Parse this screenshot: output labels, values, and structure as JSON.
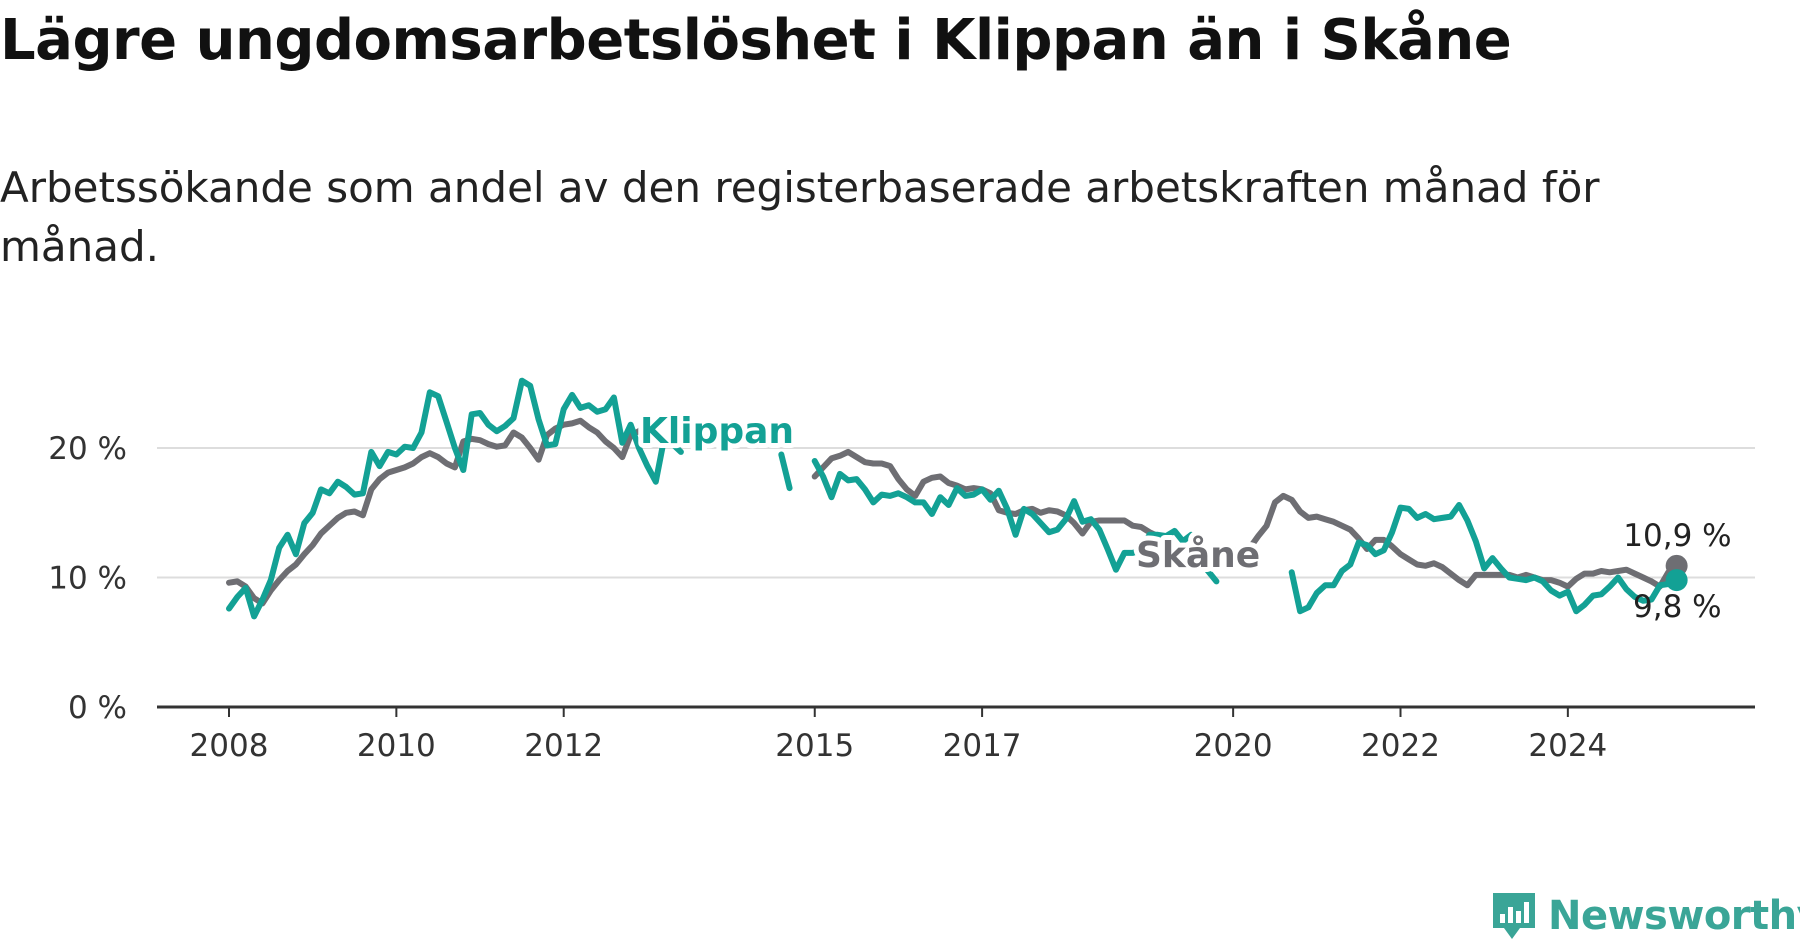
{
  "title": "Lägre ungdomsarbetslöshet i Klippan än i Skåne",
  "subtitle": "Arbetssökande som andel av den registerbaserade arbetskraften månad för månad.",
  "brand": "Newsworthy",
  "colors": {
    "klippan": "#13a195",
    "skane": "#6e6e73",
    "axis": "#333333",
    "grid": "#dddddd"
  },
  "chart_data": {
    "type": "line",
    "title": "Lägre ungdomsarbetslöshet i Klippan än i Skåne",
    "xlabel": "",
    "ylabel": "",
    "ylim": [
      0,
      20
    ],
    "xlim": [
      2008.0,
      2025.4
    ],
    "grid": true,
    "y_ticks": [
      0,
      10,
      20
    ],
    "y_tick_labels": [
      "0 %",
      "10 %",
      "20 %"
    ],
    "x_ticks": [
      2008,
      2010,
      2012,
      2015,
      2017,
      2020,
      2022,
      2024
    ],
    "x_tick_labels": [
      "2008",
      "2010",
      "2012",
      "2015",
      "2017",
      "2020",
      "2022",
      "2024"
    ],
    "series": [
      {
        "name": "Skåne",
        "label": "Skåne",
        "end_label": "10,9 %",
        "color": "#6e6e73",
        "points": [
          [
            2008.0,
            9.6
          ],
          [
            2008.1,
            9.7
          ],
          [
            2008.2,
            9.3
          ],
          [
            2008.3,
            8.4
          ],
          [
            2008.4,
            8.0
          ],
          [
            2008.5,
            9.0
          ],
          [
            2008.6,
            9.8
          ],
          [
            2008.7,
            10.5
          ],
          [
            2008.8,
            11.0
          ],
          [
            2008.9,
            11.8
          ],
          [
            2009.0,
            12.5
          ],
          [
            2009.1,
            13.4
          ],
          [
            2009.2,
            14.0
          ],
          [
            2009.3,
            14.6
          ],
          [
            2009.4,
            15.0
          ],
          [
            2009.5,
            15.1
          ],
          [
            2009.6,
            14.8
          ],
          [
            2009.7,
            16.8
          ],
          [
            2009.8,
            17.6
          ],
          [
            2009.9,
            18.1
          ],
          [
            2010.0,
            18.3
          ],
          [
            2010.1,
            18.5
          ],
          [
            2010.2,
            18.8
          ],
          [
            2010.3,
            19.3
          ],
          [
            2010.4,
            19.6
          ],
          [
            2010.5,
            19.3
          ],
          [
            2010.6,
            18.8
          ],
          [
            2010.7,
            18.5
          ],
          [
            2010.8,
            20.5
          ],
          [
            2010.9,
            20.7
          ],
          [
            2011.0,
            20.6
          ],
          [
            2011.1,
            20.3
          ],
          [
            2011.2,
            20.1
          ],
          [
            2011.3,
            20.2
          ],
          [
            2011.4,
            21.2
          ],
          [
            2011.5,
            20.8
          ],
          [
            2011.6,
            20.0
          ],
          [
            2011.7,
            19.1
          ],
          [
            2011.8,
            21.0
          ],
          [
            2011.9,
            21.5
          ],
          [
            2012.0,
            21.8
          ],
          [
            2012.1,
            21.9
          ],
          [
            2012.2,
            22.1
          ],
          [
            2012.3,
            21.6
          ],
          [
            2012.4,
            21.2
          ],
          [
            2012.5,
            20.5
          ],
          [
            2012.6,
            20.0
          ],
          [
            2012.7,
            19.3
          ],
          [
            2012.8,
            21.0
          ],
          [
            2012.9,
            21.3
          ],
          [
            2013.0,
            21.9
          ],
          [
            2015.0,
            17.8
          ],
          [
            2015.1,
            18.5
          ],
          [
            2015.2,
            19.2
          ],
          [
            2015.3,
            19.4
          ],
          [
            2015.4,
            19.7
          ],
          [
            2015.5,
            19.3
          ],
          [
            2015.6,
            18.9
          ],
          [
            2015.7,
            18.8
          ],
          [
            2015.8,
            18.8
          ],
          [
            2015.9,
            18.6
          ],
          [
            2016.0,
            17.6
          ],
          [
            2016.1,
            16.8
          ],
          [
            2016.2,
            16.3
          ],
          [
            2016.3,
            17.4
          ],
          [
            2016.4,
            17.7
          ],
          [
            2016.5,
            17.8
          ],
          [
            2016.6,
            17.3
          ],
          [
            2016.7,
            17.1
          ],
          [
            2016.8,
            16.8
          ],
          [
            2016.9,
            16.9
          ],
          [
            2017.0,
            16.8
          ],
          [
            2017.1,
            16.5
          ],
          [
            2017.2,
            15.2
          ],
          [
            2017.3,
            15.0
          ],
          [
            2017.4,
            14.9
          ],
          [
            2017.5,
            15.2
          ],
          [
            2017.6,
            15.3
          ],
          [
            2017.7,
            15.0
          ],
          [
            2017.8,
            15.2
          ],
          [
            2017.9,
            15.1
          ],
          [
            2018.0,
            14.8
          ],
          [
            2018.1,
            14.2
          ],
          [
            2018.2,
            13.4
          ],
          [
            2018.3,
            14.3
          ],
          [
            2018.4,
            14.4
          ],
          [
            2018.5,
            14.4
          ],
          [
            2018.6,
            14.4
          ],
          [
            2018.7,
            14.4
          ],
          [
            2018.8,
            14.0
          ],
          [
            2018.9,
            13.9
          ],
          [
            2019.0,
            13.5
          ],
          [
            2019.1,
            13.2
          ],
          [
            2019.2,
            12.5
          ],
          [
            2019.3,
            11.9
          ],
          [
            2020.0,
            12.2
          ],
          [
            2020.1,
            11.8
          ],
          [
            2020.2,
            12.3
          ],
          [
            2020.3,
            13.2
          ],
          [
            2020.4,
            14.0
          ],
          [
            2020.5,
            15.8
          ],
          [
            2020.6,
            16.3
          ],
          [
            2020.7,
            16.0
          ],
          [
            2020.8,
            15.1
          ],
          [
            2020.9,
            14.6
          ],
          [
            2021.0,
            14.7
          ],
          [
            2021.1,
            14.5
          ],
          [
            2021.2,
            14.3
          ],
          [
            2021.3,
            14.0
          ],
          [
            2021.4,
            13.7
          ],
          [
            2021.5,
            13.0
          ],
          [
            2021.6,
            12.2
          ],
          [
            2021.7,
            12.9
          ],
          [
            2021.8,
            12.9
          ],
          [
            2021.9,
            12.4
          ],
          [
            2022.0,
            11.8
          ],
          [
            2022.1,
            11.4
          ],
          [
            2022.2,
            11.0
          ],
          [
            2022.3,
            10.9
          ],
          [
            2022.4,
            11.1
          ],
          [
            2022.5,
            10.8
          ],
          [
            2022.6,
            10.3
          ],
          [
            2022.7,
            9.8
          ],
          [
            2022.8,
            9.4
          ],
          [
            2022.9,
            10.2
          ],
          [
            2023.0,
            10.2
          ],
          [
            2023.1,
            10.2
          ],
          [
            2023.2,
            10.2
          ],
          [
            2023.3,
            10.2
          ],
          [
            2023.4,
            10.0
          ],
          [
            2023.5,
            10.2
          ],
          [
            2023.6,
            10.0
          ],
          [
            2023.7,
            9.8
          ],
          [
            2023.8,
            9.8
          ],
          [
            2023.9,
            9.6
          ],
          [
            2024.0,
            9.3
          ],
          [
            2024.1,
            9.9
          ],
          [
            2024.2,
            10.3
          ],
          [
            2024.3,
            10.3
          ],
          [
            2024.4,
            10.5
          ],
          [
            2024.5,
            10.4
          ],
          [
            2024.6,
            10.5
          ],
          [
            2024.7,
            10.6
          ],
          [
            2024.8,
            10.3
          ],
          [
            2024.9,
            10.0
          ],
          [
            2025.0,
            9.7
          ],
          [
            2025.1,
            9.3
          ],
          [
            2025.2,
            10.4
          ],
          [
            2025.3,
            10.9
          ]
        ]
      },
      {
        "name": "Klippan",
        "label": "Klippan",
        "end_label": "9,8 %",
        "color": "#13a195",
        "points": [
          [
            2008.0,
            7.6
          ],
          [
            2008.1,
            8.5
          ],
          [
            2008.2,
            9.2
          ],
          [
            2008.3,
            7.0
          ],
          [
            2008.4,
            8.3
          ],
          [
            2008.5,
            9.8
          ],
          [
            2008.6,
            12.3
          ],
          [
            2008.7,
            13.3
          ],
          [
            2008.8,
            11.8
          ],
          [
            2008.9,
            14.2
          ],
          [
            2009.0,
            15.0
          ],
          [
            2009.1,
            16.8
          ],
          [
            2009.2,
            16.5
          ],
          [
            2009.3,
            17.4
          ],
          [
            2009.4,
            17.0
          ],
          [
            2009.5,
            16.4
          ],
          [
            2009.6,
            16.5
          ],
          [
            2009.7,
            19.7
          ],
          [
            2009.8,
            18.6
          ],
          [
            2009.9,
            19.7
          ],
          [
            2010.0,
            19.5
          ],
          [
            2010.1,
            20.1
          ],
          [
            2010.2,
            20.0
          ],
          [
            2010.3,
            21.2
          ],
          [
            2010.4,
            24.3
          ],
          [
            2010.5,
            24.0
          ],
          [
            2010.6,
            22.0
          ],
          [
            2010.7,
            20.0
          ],
          [
            2010.8,
            18.3
          ],
          [
            2010.9,
            22.6
          ],
          [
            2011.0,
            22.7
          ],
          [
            2011.1,
            21.8
          ],
          [
            2011.2,
            21.3
          ],
          [
            2011.3,
            21.7
          ],
          [
            2011.4,
            22.3
          ],
          [
            2011.5,
            25.2
          ],
          [
            2011.6,
            24.8
          ],
          [
            2011.7,
            22.2
          ],
          [
            2011.8,
            20.2
          ],
          [
            2011.9,
            20.3
          ],
          [
            2012.0,
            23.0
          ],
          [
            2012.1,
            24.1
          ],
          [
            2012.2,
            23.1
          ],
          [
            2012.3,
            23.3
          ],
          [
            2012.4,
            22.8
          ],
          [
            2012.5,
            23.0
          ],
          [
            2012.6,
            23.9
          ],
          [
            2012.7,
            20.4
          ],
          [
            2012.8,
            21.8
          ],
          [
            2012.9,
            20.0
          ],
          [
            2013.0,
            18.6
          ],
          [
            2013.1,
            17.4
          ],
          [
            2013.2,
            20.7
          ],
          [
            2013.3,
            20.3
          ],
          [
            2013.4,
            19.7
          ],
          [
            2014.6,
            19.5
          ],
          [
            2014.7,
            16.9
          ],
          [
            2015.0,
            19.0
          ],
          [
            2015.1,
            17.8
          ],
          [
            2015.2,
            16.2
          ],
          [
            2015.3,
            18.0
          ],
          [
            2015.4,
            17.5
          ],
          [
            2015.5,
            17.6
          ],
          [
            2015.6,
            16.8
          ],
          [
            2015.7,
            15.8
          ],
          [
            2015.8,
            16.4
          ],
          [
            2015.9,
            16.3
          ],
          [
            2016.0,
            16.5
          ],
          [
            2016.1,
            16.2
          ],
          [
            2016.2,
            15.8
          ],
          [
            2016.3,
            15.8
          ],
          [
            2016.4,
            14.9
          ],
          [
            2016.5,
            16.2
          ],
          [
            2016.6,
            15.6
          ],
          [
            2016.7,
            16.9
          ],
          [
            2016.8,
            16.3
          ],
          [
            2016.9,
            16.4
          ],
          [
            2017.0,
            16.8
          ],
          [
            2017.1,
            16.0
          ],
          [
            2017.2,
            16.7
          ],
          [
            2017.3,
            15.3
          ],
          [
            2017.4,
            13.3
          ],
          [
            2017.5,
            15.3
          ],
          [
            2017.6,
            14.9
          ],
          [
            2017.7,
            14.2
          ],
          [
            2017.8,
            13.5
          ],
          [
            2017.9,
            13.7
          ],
          [
            2018.0,
            14.5
          ],
          [
            2018.1,
            15.9
          ],
          [
            2018.2,
            14.3
          ],
          [
            2018.3,
            14.5
          ],
          [
            2018.4,
            13.7
          ],
          [
            2018.5,
            12.2
          ],
          [
            2018.6,
            10.6
          ],
          [
            2018.7,
            11.9
          ],
          [
            2018.8,
            11.9
          ],
          [
            2018.9,
            12.1
          ],
          [
            2019.0,
            13.3
          ],
          [
            2019.1,
            13.3
          ],
          [
            2019.2,
            13.2
          ],
          [
            2019.3,
            13.6
          ],
          [
            2019.4,
            12.8
          ],
          [
            2019.5,
            13.3
          ],
          [
            2019.6,
            11.3
          ],
          [
            2019.7,
            10.5
          ],
          [
            2019.8,
            9.7
          ],
          [
            2020.7,
            10.4
          ],
          [
            2020.8,
            7.4
          ],
          [
            2020.9,
            7.7
          ],
          [
            2021.0,
            8.8
          ],
          [
            2021.1,
            9.4
          ],
          [
            2021.2,
            9.4
          ],
          [
            2021.3,
            10.5
          ],
          [
            2021.4,
            11.0
          ],
          [
            2021.5,
            12.7
          ],
          [
            2021.6,
            12.5
          ],
          [
            2021.7,
            11.8
          ],
          [
            2021.8,
            12.1
          ],
          [
            2021.9,
            13.5
          ],
          [
            2022.0,
            15.4
          ],
          [
            2022.1,
            15.3
          ],
          [
            2022.2,
            14.6
          ],
          [
            2022.3,
            14.9
          ],
          [
            2022.4,
            14.5
          ],
          [
            2022.5,
            14.6
          ],
          [
            2022.6,
            14.7
          ],
          [
            2022.7,
            15.6
          ],
          [
            2022.8,
            14.4
          ],
          [
            2022.9,
            12.8
          ],
          [
            2023.0,
            10.7
          ],
          [
            2023.1,
            11.5
          ],
          [
            2023.2,
            10.7
          ],
          [
            2023.3,
            10.0
          ],
          [
            2023.4,
            9.9
          ],
          [
            2023.5,
            9.8
          ],
          [
            2023.6,
            10.0
          ],
          [
            2023.7,
            9.7
          ],
          [
            2023.8,
            9.0
          ],
          [
            2023.9,
            8.6
          ],
          [
            2024.0,
            8.9
          ],
          [
            2024.1,
            7.4
          ],
          [
            2024.2,
            7.9
          ],
          [
            2024.3,
            8.6
          ],
          [
            2024.4,
            8.7
          ],
          [
            2024.5,
            9.3
          ],
          [
            2024.6,
            10.0
          ],
          [
            2024.7,
            9.1
          ],
          [
            2024.8,
            8.5
          ],
          [
            2024.9,
            8.2
          ],
          [
            2025.0,
            8.3
          ],
          [
            2025.1,
            9.4
          ],
          [
            2025.2,
            9.5
          ],
          [
            2025.3,
            9.8
          ]
        ]
      }
    ]
  }
}
